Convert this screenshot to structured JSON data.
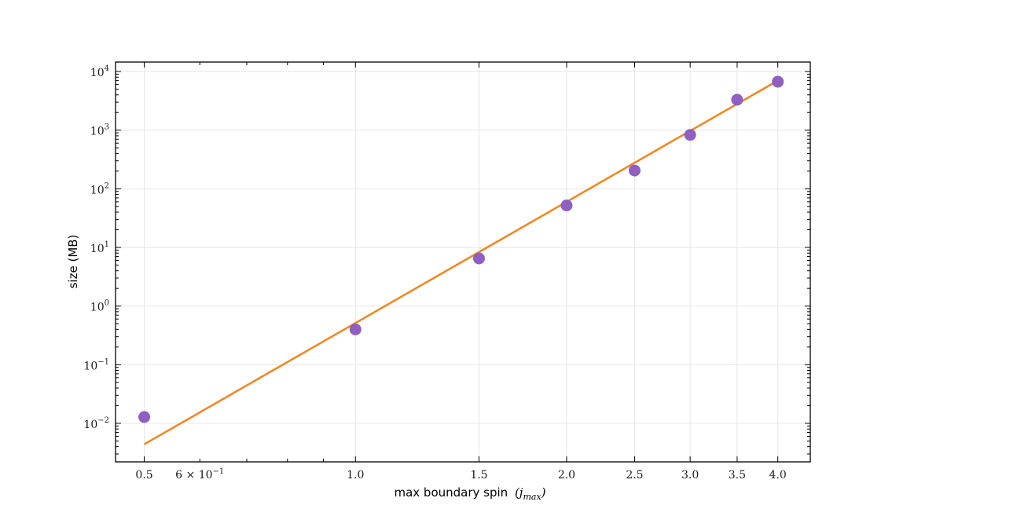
{
  "chart_data": {
    "type": "scatter",
    "x_scale": "log",
    "y_scale": "log",
    "xlabel": "max boundary spin",
    "xlabel_math": "(j",
    "xlabel_math_sub": "max",
    "xlabel_math_close": ")",
    "ylabel": "size (MB)",
    "xlim": [
      0.455,
      4.45
    ],
    "ylim": [
      0.0022,
      14500
    ],
    "grid": true,
    "x_ticks": [
      {
        "value": 0.5,
        "label": "0.5"
      },
      {
        "value": 1.0,
        "label": "1.0"
      },
      {
        "value": 1.5,
        "label": "1.5"
      },
      {
        "value": 2.0,
        "label": "2.0"
      },
      {
        "value": 2.5,
        "label": "2.5"
      },
      {
        "value": 3.0,
        "label": "3.0"
      },
      {
        "value": 3.5,
        "label": "3.5"
      },
      {
        "value": 4.0,
        "label": "4.0"
      }
    ],
    "x_minor_tick_label": {
      "value": 0.6,
      "base": "6 × 10",
      "exp": "−1"
    },
    "y_ticks": [
      {
        "value": 0.01,
        "base": "10",
        "exp": "−2"
      },
      {
        "value": 0.1,
        "base": "10",
        "exp": "−1"
      },
      {
        "value": 1,
        "base": "10",
        "exp": "0"
      },
      {
        "value": 10,
        "base": "10",
        "exp": "1"
      },
      {
        "value": 100,
        "base": "10",
        "exp": "2"
      },
      {
        "value": 1000,
        "base": "10",
        "exp": "3"
      },
      {
        "value": 10000,
        "base": "10",
        "exp": "4"
      }
    ],
    "series": [
      {
        "kind": "scatter",
        "color": "#8f5fc1",
        "x": [
          0.5,
          1.0,
          1.5,
          2.0,
          2.5,
          3.0,
          3.5,
          4.0
        ],
        "y": [
          0.0128,
          0.4,
          6.5,
          52,
          205,
          830,
          3300,
          6700
        ]
      },
      {
        "kind": "line",
        "color": "#f2851f",
        "x": [
          0.5,
          4.0
        ],
        "y": [
          0.0044,
          7000
        ]
      }
    ]
  }
}
